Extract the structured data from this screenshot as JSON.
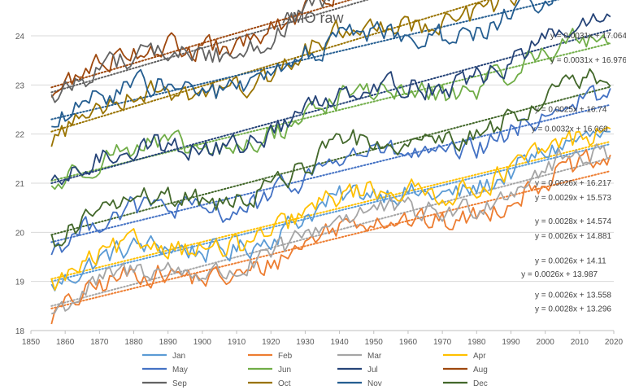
{
  "chart_data": {
    "type": "line",
    "title": "AMO raw",
    "xlabel": "",
    "ylabel": "",
    "xlim": [
      1850,
      2020
    ],
    "ylim": [
      18,
      24
    ],
    "x_ticks": [
      "1850",
      "1860",
      "1870",
      "1880",
      "1890",
      "1900",
      "1910",
      "1920",
      "1930",
      "1940",
      "1950",
      "1960",
      "1970",
      "1980",
      "1990",
      "2000",
      "2010",
      "2020"
    ],
    "y_ticks": [
      "18",
      "19",
      "20",
      "21",
      "22",
      "23",
      "24"
    ],
    "grid": true,
    "legend_position": "bottom",
    "x_start": 1856,
    "x_end": 2019,
    "series": [
      {
        "name": "Jan",
        "color": "#5B9BD5",
        "base": 19.0,
        "slope": 0.0026
      },
      {
        "name": "Feb",
        "color": "#ED7D31",
        "base": 18.45,
        "slope": 0.0026
      },
      {
        "name": "Mar",
        "color": "#A5A5A5",
        "base": 18.5,
        "slope": 0.0028
      },
      {
        "name": "Apr",
        "color": "#FFC000",
        "base": 19.05,
        "slope": 0.0026
      },
      {
        "name": "May",
        "color": "#4472C4",
        "base": 19.8,
        "slope": 0.0026
      },
      {
        "name": "Jun",
        "color": "#70AD47",
        "base": 21.05,
        "slope": 0.0026
      },
      {
        "name": "Jul",
        "color": "#264478",
        "base": 21.0,
        "slope": 0.0029
      },
      {
        "name": "Aug",
        "color": "#9E480E",
        "base": 22.95,
        "slope": 0.0031
      },
      {
        "name": "Sep",
        "color": "#636363",
        "base": 22.85,
        "slope": 0.0031
      },
      {
        "name": "Oct",
        "color": "#997300",
        "base": 22.05,
        "slope": 0.0032
      },
      {
        "name": "Nov",
        "color": "#255E91",
        "base": 22.3,
        "slope": 0.0025
      },
      {
        "name": "Dec",
        "color": "#43682B",
        "base": 19.95,
        "slope": 0.0028
      }
    ],
    "equations": [
      {
        "text": "y = 0.0031x + 17.064",
        "year": 2001.5,
        "value": 23.95
      },
      {
        "text": "y = 0.0031x + 16.976",
        "year": 2001.5,
        "value": 23.45
      },
      {
        "text": "y = 0.0025x + 16.74",
        "year": 1997,
        "value": 22.45
      },
      {
        "text": "y = 0.0032x + 16.069",
        "year": 1996,
        "value": 22.05
      },
      {
        "text": "y = 0.0026x + 16.217",
        "year": 1997,
        "value": 20.95
      },
      {
        "text": "y = 0.0029x + 15.573",
        "year": 1997,
        "value": 20.65
      },
      {
        "text": "y = 0.0028x + 14.574",
        "year": 1997,
        "value": 20.17
      },
      {
        "text": "y = 0.0026x + 14.881",
        "year": 1997,
        "value": 19.87
      },
      {
        "text": "y = 0.0026x + 14.11",
        "year": 1997,
        "value": 19.37
      },
      {
        "text": "y = 0.0026x + 13.987",
        "year": 1993,
        "value": 19.09
      },
      {
        "text": "y = 0.0026x + 13.558",
        "year": 1997,
        "value": 18.67
      },
      {
        "text": "y = 0.0028x + 13.296",
        "year": 1997,
        "value": 18.39
      }
    ]
  }
}
